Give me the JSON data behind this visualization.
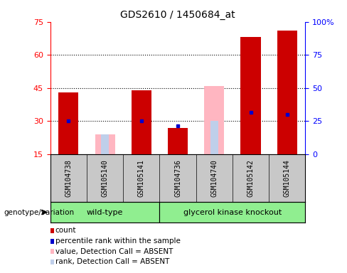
{
  "title": "GDS2610 / 1450684_at",
  "samples": [
    "GSM104738",
    "GSM105140",
    "GSM105141",
    "GSM104736",
    "GSM104740",
    "GSM105142",
    "GSM105144"
  ],
  "group1_name": "wild-type",
  "group1_indices": [
    0,
    1,
    2
  ],
  "group2_name": "glycerol kinase knockout",
  "group2_indices": [
    3,
    4,
    5,
    6
  ],
  "group_color": "#90EE90",
  "count_values": [
    43,
    null,
    44,
    27,
    null,
    68,
    71
  ],
  "percentile_rank": [
    30,
    null,
    30,
    28,
    null,
    34,
    33
  ],
  "absent_value": [
    null,
    24,
    null,
    null,
    46,
    null,
    null
  ],
  "absent_rank": [
    null,
    24,
    null,
    null,
    30,
    null,
    null
  ],
  "ylim_left": [
    15,
    75
  ],
  "ylim_right": [
    0,
    100
  ],
  "yticks_left": [
    15,
    30,
    45,
    60,
    75
  ],
  "yticks_right": [
    0,
    25,
    50,
    75,
    100
  ],
  "ytick_right_labels": [
    "0",
    "25",
    "50",
    "75",
    "100%"
  ],
  "gridline_y": [
    30,
    45,
    60
  ],
  "count_color": "#CC0000",
  "percentile_color": "#0000CC",
  "absent_value_color": "#FFB6C1",
  "absent_rank_color": "#BFCFEA",
  "bar_width": 0.55,
  "legend_items": [
    {
      "label": "count",
      "color": "#CC0000"
    },
    {
      "label": "percentile rank within the sample",
      "color": "#0000CC"
    },
    {
      "label": "value, Detection Call = ABSENT",
      "color": "#FFB6C1"
    },
    {
      "label": "rank, Detection Call = ABSENT",
      "color": "#BFCFEA"
    }
  ],
  "label_genotype": "genotype/variation",
  "sample_area_bg": "#C8C8C8",
  "plot_area_bg": "#FFFFFF"
}
